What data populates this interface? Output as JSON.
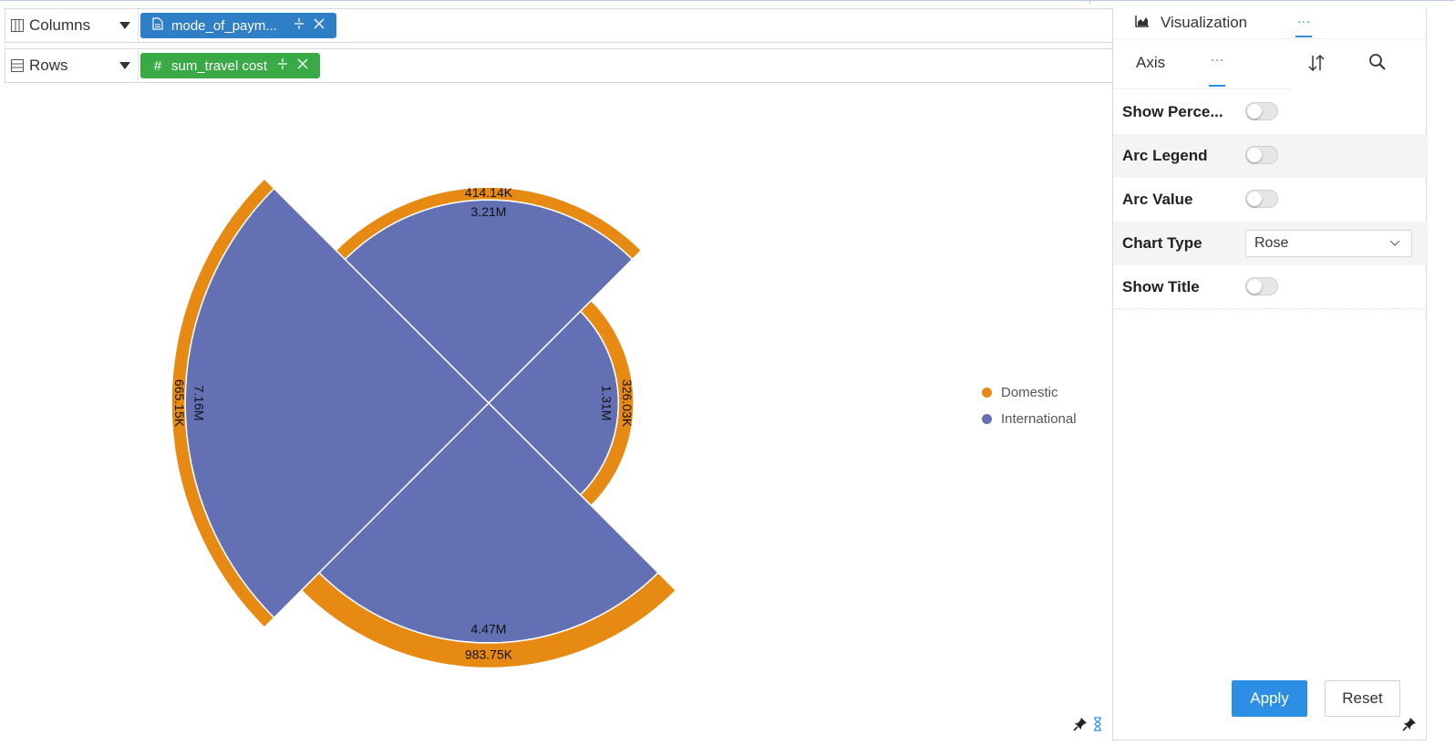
{
  "shelves": {
    "columns": {
      "label": "Columns",
      "pill_text": "mode_of_paym...",
      "pill_type": "document-icon"
    },
    "rows": {
      "label": "Rows",
      "pill_text": "sum_travel cost",
      "pill_type_glyph": "#"
    }
  },
  "chart_data": {
    "type": "rose",
    "categories": [
      "",
      "",
      "",
      ""
    ],
    "series": [
      {
        "name": "Domestic",
        "color": "#e68a14",
        "values": [
          414140,
          326030,
          983750,
          665150
        ],
        "labels": [
          "414.14K",
          "326.03K",
          "983.75K",
          "665.15K"
        ]
      },
      {
        "name": "International",
        "color": "#6470b4",
        "values": [
          3210000,
          1310000,
          4470000,
          7160000
        ],
        "labels": [
          "3.21M",
          "1.31M",
          "4.47M",
          "7.16M"
        ]
      }
    ],
    "stacked": true,
    "legend_position": "right"
  },
  "legend": {
    "items": [
      {
        "label": "Domestic",
        "color": "#e68a14"
      },
      {
        "label": "International",
        "color": "#6470b4"
      }
    ]
  },
  "panel": {
    "tab_visualization": "Visualization",
    "tab_more": "···",
    "subtab_axis": "Axis",
    "subtab_more": "···",
    "properties": {
      "show_percentage": "Show Perce...",
      "arc_legend": "Arc Legend",
      "arc_value": "Arc Value",
      "chart_type": "Chart Type",
      "chart_type_value": "Rose",
      "show_title": "Show Title"
    },
    "apply_label": "Apply",
    "reset_label": "Reset"
  },
  "colors": {
    "accent": "#2d8fe4",
    "pill_blue": "#2f7fc7",
    "pill_green": "#3aaa47"
  }
}
